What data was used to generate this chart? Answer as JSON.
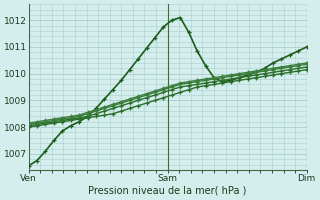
{
  "xlabel": "Pression niveau de la mer( hPa )",
  "bg_color": "#d4eeed",
  "grid_color": "#aacccc",
  "xlim": [
    0,
    96
  ],
  "ylim": [
    1006.4,
    1012.6
  ],
  "yticks": [
    1007,
    1008,
    1009,
    1010,
    1011,
    1012
  ],
  "xtick_positions": [
    0,
    48,
    96
  ],
  "xtick_labels": [
    "Ven",
    "Sam",
    "Dim"
  ],
  "vline_color": "#446644",
  "series": [
    [
      1006.55,
      1006.75,
      1007.1,
      1007.5,
      1007.85,
      1008.05,
      1008.2,
      1008.4,
      1008.7,
      1009.05,
      1009.4,
      1009.75,
      1010.15,
      1010.55,
      1010.95,
      1011.35,
      1011.75,
      1012.0,
      1012.1,
      1011.55,
      1010.85,
      1010.3,
      1009.85,
      1009.7,
      1009.75,
      1009.85,
      1009.95,
      1010.05,
      1010.2,
      1010.4,
      1010.55,
      1010.7,
      1010.85,
      1011.0
    ],
    [
      1008.0,
      1008.05,
      1008.1,
      1008.15,
      1008.2,
      1008.25,
      1008.3,
      1008.35,
      1008.4,
      1008.45,
      1008.5,
      1008.6,
      1008.7,
      1008.8,
      1008.9,
      1009.0,
      1009.1,
      1009.2,
      1009.3,
      1009.4,
      1009.5,
      1009.55,
      1009.6,
      1009.65,
      1009.7,
      1009.75,
      1009.8,
      1009.85,
      1009.9,
      1009.95,
      1010.0,
      1010.05,
      1010.1,
      1010.15
    ],
    [
      1008.05,
      1008.1,
      1008.15,
      1008.2,
      1008.25,
      1008.3,
      1008.35,
      1008.4,
      1008.5,
      1008.6,
      1008.7,
      1008.8,
      1008.9,
      1009.0,
      1009.1,
      1009.2,
      1009.3,
      1009.4,
      1009.5,
      1009.55,
      1009.6,
      1009.65,
      1009.7,
      1009.75,
      1009.8,
      1009.85,
      1009.9,
      1009.95,
      1010.0,
      1010.05,
      1010.1,
      1010.15,
      1010.2,
      1010.25
    ],
    [
      1008.1,
      1008.15,
      1008.2,
      1008.25,
      1008.3,
      1008.35,
      1008.4,
      1008.5,
      1008.6,
      1008.7,
      1008.8,
      1008.9,
      1009.0,
      1009.1,
      1009.2,
      1009.3,
      1009.4,
      1009.5,
      1009.6,
      1009.65,
      1009.7,
      1009.75,
      1009.8,
      1009.85,
      1009.9,
      1009.95,
      1010.0,
      1010.05,
      1010.1,
      1010.15,
      1010.2,
      1010.25,
      1010.3,
      1010.35
    ],
    [
      1008.15,
      1008.2,
      1008.25,
      1008.3,
      1008.35,
      1008.4,
      1008.45,
      1008.55,
      1008.65,
      1008.75,
      1008.85,
      1008.95,
      1009.05,
      1009.15,
      1009.25,
      1009.35,
      1009.45,
      1009.55,
      1009.65,
      1009.7,
      1009.75,
      1009.8,
      1009.85,
      1009.9,
      1009.95,
      1010.0,
      1010.05,
      1010.1,
      1010.15,
      1010.2,
      1010.25,
      1010.3,
      1010.35,
      1010.4
    ]
  ],
  "line_colors": [
    "#1a5c1a",
    "#2a6e2a",
    "#2a6e2a",
    "#3a7e3a",
    "#3a7e3a"
  ],
  "linewidths": [
    1.2,
    1.0,
    1.0,
    1.0,
    1.0
  ],
  "marker_size": 2.5,
  "figsize": [
    3.2,
    2.0
  ],
  "dpi": 100
}
